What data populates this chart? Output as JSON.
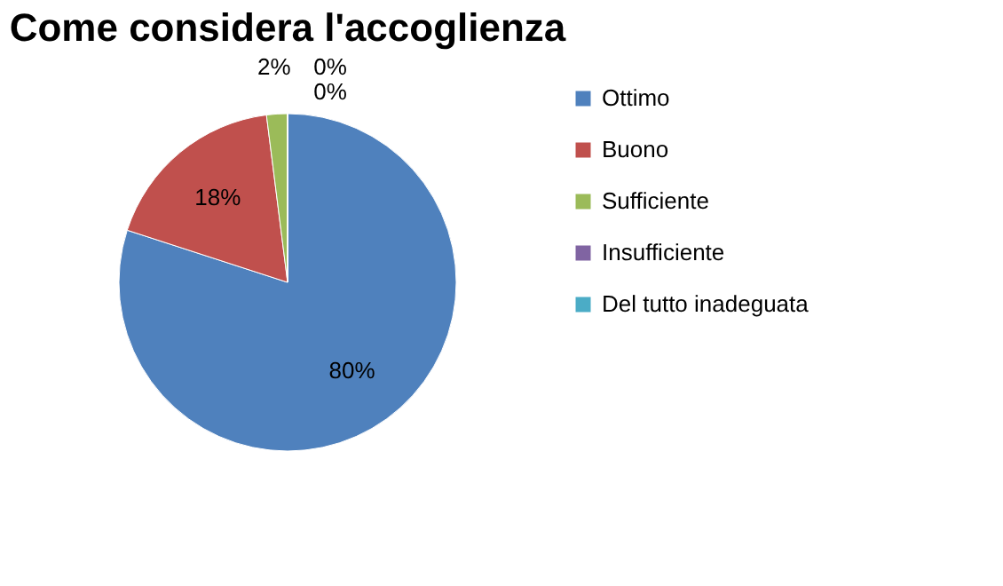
{
  "chart_data": {
    "type": "pie",
    "title": "Come considera l'accoglienza",
    "categories": [
      "Ottimo",
      "Buono",
      "Sufficiente",
      "Insufficiente",
      "Del tutto inadeguata"
    ],
    "values": [
      80,
      18,
      2,
      0,
      0
    ],
    "colors": [
      "#4f81bd",
      "#c0504d",
      "#9bbb59",
      "#8064a2",
      "#4bacc6"
    ],
    "value_labels": [
      "80%",
      "18%",
      "2%",
      "0%",
      "0%"
    ],
    "legend": "right"
  }
}
